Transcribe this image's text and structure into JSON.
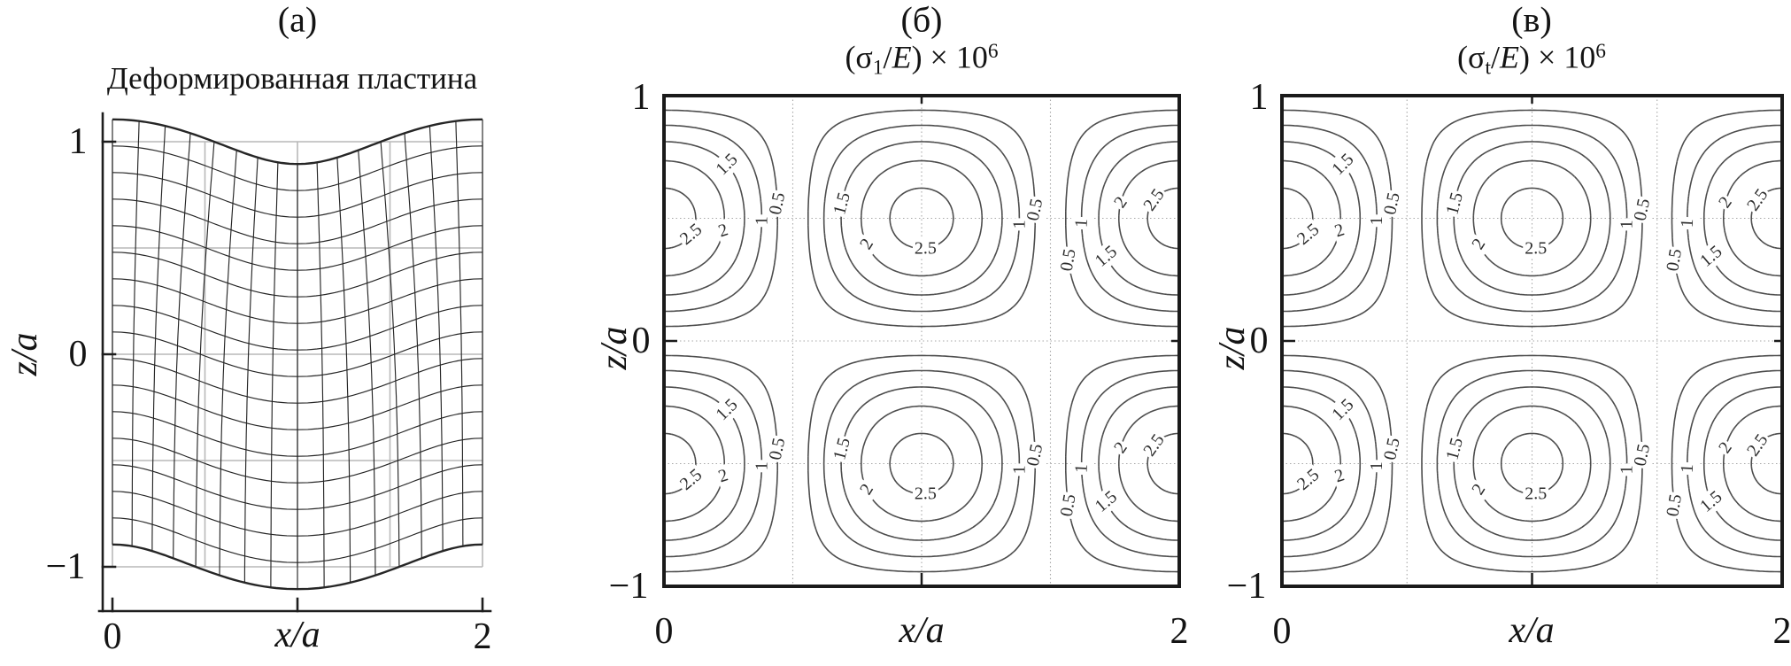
{
  "panels": {
    "a": {
      "tag": "(а)",
      "title": "Деформированная пластина",
      "xlabel": "x/a",
      "ylabel": "z/a"
    },
    "b": {
      "tag": "(б)",
      "title_parts": {
        "p1": "(σ",
        "sub": "1",
        "p2": "/",
        "e": "E",
        "p3": ") × 10",
        "sup": "6"
      },
      "xlabel": "x/a",
      "ylabel": "z/a"
    },
    "v": {
      "tag": "(в)",
      "title_parts": {
        "p1": "(σ",
        "sub": "t",
        "p2": "/",
        "e": "E",
        "p3": ") × 10",
        "sup": "6"
      },
      "xlabel": "x/a",
      "ylabel": "z/a"
    }
  },
  "chart_data": [
    {
      "panel": "a",
      "type": "deformed-grid",
      "title": "Деформированная пластина",
      "xlabel": "x/a",
      "ylabel": "z/a",
      "x_range": [
        0,
        2
      ],
      "z_range": [
        -1,
        1
      ],
      "x_ticks": [
        {
          "value": 0,
          "label": "0"
        },
        {
          "value": 1,
          "label": ""
        },
        {
          "value": 2,
          "label": "2"
        }
      ],
      "y_ticks": [
        {
          "value": 1,
          "label": "1"
        },
        {
          "value": 0,
          "label": "0"
        },
        {
          "value": -1,
          "label": "−1"
        }
      ],
      "grid_step": 0.125,
      "deformation": {
        "w_offset": 0,
        "w_amplitude": 0.105,
        "shear_amplitude": 0.05,
        "bow_amplitude": 0.025,
        "description": "w(x)=0.105·cos(πx); u(x,z)=0.05·z·sin(πx) − 0.025·sin(πx)·cos(πz/2)"
      },
      "reference_grid": {
        "x": [
          0,
          0.5,
          1,
          1.5,
          2
        ],
        "z": [
          -1,
          -0.5,
          0,
          0.5,
          1
        ]
      },
      "grid_on": true,
      "legend": "none"
    },
    {
      "panel": "b",
      "type": "contour",
      "title": "(σ1/E) × 10^6",
      "xlabel": "x/a",
      "ylabel": "z/a",
      "x_range": [
        0,
        2
      ],
      "z_range": [
        -1,
        1
      ],
      "x_ticks": [
        {
          "value": 0,
          "label": "0"
        },
        {
          "value": 1,
          "label": ""
        },
        {
          "value": 2,
          "label": "2"
        }
      ],
      "y_ticks": [
        {
          "value": 1,
          "label": "1"
        },
        {
          "value": 0,
          "label": "0"
        },
        {
          "value": -1,
          "label": "−1"
        }
      ],
      "levels": [
        0.5,
        1,
        1.5,
        2,
        2.5
      ],
      "max_value": 2.7,
      "field": "2.7·|cos(πx)·sin(πz)|",
      "extrema_centers": {
        "x": [
          0,
          1,
          2
        ],
        "z": [
          0.5,
          -0.5
        ]
      },
      "gridlines": {
        "x": [
          0.5,
          1,
          1.5
        ],
        "z": [
          -0.5,
          0,
          0.5
        ],
        "style": "dotted"
      },
      "contour_labels": [
        {
          "level": 1.5,
          "x": 0.244,
          "z": 0.72,
          "rot": -45,
          "text": "1.5"
        },
        {
          "level": 0.5,
          "x": 0.44,
          "z": 0.56,
          "rot": -78,
          "text": "0.5"
        },
        {
          "level": 1,
          "x": 0.379,
          "z": 0.49,
          "rot": -90,
          "text": "1"
        },
        {
          "level": 2.5,
          "x": 0.105,
          "z": 0.435,
          "rot": -40,
          "text": "2.5"
        },
        {
          "level": 2,
          "x": 0.23,
          "z": 0.45,
          "rot": -18,
          "text": "2"
        },
        {
          "level": 1.5,
          "x": 0.691,
          "z": 0.56,
          "rot": -75,
          "text": "1.5"
        },
        {
          "level": 2,
          "x": 0.787,
          "z": 0.395,
          "rot": -58,
          "text": "2"
        },
        {
          "level": 2.5,
          "x": 1.015,
          "z": 0.378,
          "rot": 0,
          "text": "2.5"
        },
        {
          "level": 1,
          "x": 1.379,
          "z": 0.475,
          "rot": -90,
          "text": "1"
        },
        {
          "level": 0.5,
          "x": 1.44,
          "z": 0.535,
          "rot": -78,
          "text": "0.5"
        },
        {
          "level": 0.5,
          "x": 1.569,
          "z": 0.33,
          "rot": -80,
          "text": "0.5"
        },
        {
          "level": 1,
          "x": 1.621,
          "z": 0.48,
          "rot": -87,
          "text": "1"
        },
        {
          "level": 2,
          "x": 1.773,
          "z": 0.565,
          "rot": -55,
          "text": "2"
        },
        {
          "level": 2.5,
          "x": 1.902,
          "z": 0.575,
          "rot": -55,
          "text": "2.5"
        },
        {
          "level": 1.5,
          "x": 1.716,
          "z": 0.345,
          "rot": -40,
          "text": "1.5"
        }
      ],
      "grid_on": true,
      "legend": "none"
    },
    {
      "panel": "v",
      "type": "contour",
      "title": "(σt/E) × 10^6",
      "xlabel": "x/a",
      "ylabel": "z/a",
      "x_range": [
        0,
        2
      ],
      "z_range": [
        -1,
        1
      ],
      "x_ticks": [
        {
          "value": 0,
          "label": "0"
        },
        {
          "value": 1,
          "label": ""
        },
        {
          "value": 2,
          "label": "2"
        }
      ],
      "y_ticks": [
        {
          "value": 1,
          "label": "1"
        },
        {
          "value": 0,
          "label": "0"
        },
        {
          "value": -1,
          "label": "−1"
        }
      ],
      "levels": [
        0.5,
        1,
        1.5,
        2,
        2.5
      ],
      "max_value": 2.7,
      "field": "2.7·|cos(πx)·sin(πz)|",
      "extrema_centers": {
        "x": [
          0,
          1,
          2
        ],
        "z": [
          0.5,
          -0.5
        ]
      },
      "gridlines": {
        "x": [
          0.5,
          1,
          1.5
        ],
        "z": [
          -0.5,
          0,
          0.5
        ],
        "style": "dotted"
      },
      "contour_labels": [
        {
          "level": 1.5,
          "x": 0.244,
          "z": 0.72,
          "rot": -45,
          "text": "1.5"
        },
        {
          "level": 0.5,
          "x": 0.44,
          "z": 0.56,
          "rot": -78,
          "text": "0.5"
        },
        {
          "level": 1,
          "x": 0.379,
          "z": 0.49,
          "rot": -90,
          "text": "1"
        },
        {
          "level": 2.5,
          "x": 0.105,
          "z": 0.435,
          "rot": -40,
          "text": "2.5"
        },
        {
          "level": 2,
          "x": 0.23,
          "z": 0.45,
          "rot": -18,
          "text": "2"
        },
        {
          "level": 1.5,
          "x": 0.691,
          "z": 0.56,
          "rot": -75,
          "text": "1.5"
        },
        {
          "level": 2,
          "x": 0.787,
          "z": 0.395,
          "rot": -58,
          "text": "2"
        },
        {
          "level": 2.5,
          "x": 1.015,
          "z": 0.378,
          "rot": 0,
          "text": "2.5"
        },
        {
          "level": 1,
          "x": 1.379,
          "z": 0.475,
          "rot": -90,
          "text": "1"
        },
        {
          "level": 0.5,
          "x": 1.44,
          "z": 0.535,
          "rot": -78,
          "text": "0.5"
        },
        {
          "level": 0.5,
          "x": 1.569,
          "z": 0.33,
          "rot": -80,
          "text": "0.5"
        },
        {
          "level": 1,
          "x": 1.621,
          "z": 0.48,
          "rot": -87,
          "text": "1"
        },
        {
          "level": 2,
          "x": 1.773,
          "z": 0.565,
          "rot": -55,
          "text": "2"
        },
        {
          "level": 2.5,
          "x": 1.902,
          "z": 0.575,
          "rot": -55,
          "text": "2.5"
        },
        {
          "level": 1.5,
          "x": 1.716,
          "z": 0.345,
          "rot": -40,
          "text": "1.5"
        }
      ],
      "grid_on": true,
      "legend": "none"
    }
  ],
  "colors": {
    "contour_line": "#4d4d4d",
    "grid_line": "#262626",
    "frame": "#1a1a1a",
    "reference_grid": "#b9b9b9",
    "dotted_grid": "#a8a8a8",
    "label_text": "#2b2b2b"
  }
}
